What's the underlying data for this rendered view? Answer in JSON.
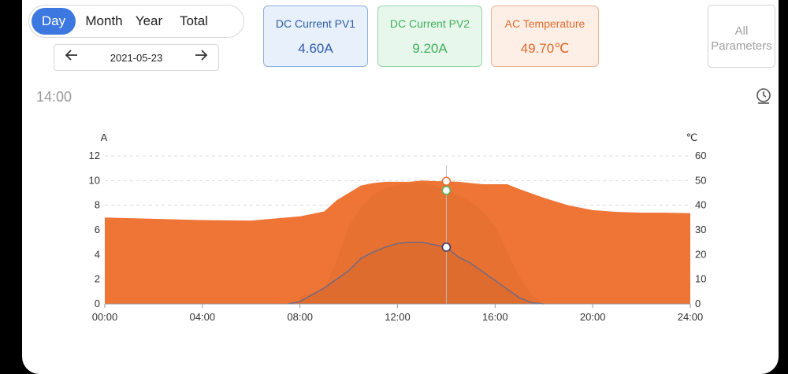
{
  "period_tabs": {
    "day": "Day",
    "month": "Month",
    "year": "Year",
    "total": "Total"
  },
  "date": "2021-05-23",
  "nav": {
    "prev_icon": "arrow-left-icon",
    "next_icon": "arrow-right-icon"
  },
  "cards": [
    {
      "label": "DC Current PV1",
      "value": "4.60A",
      "color": "#2e5da8"
    },
    {
      "label": "DC Current PV2",
      "value": "9.20A",
      "color": "#3fae5a"
    },
    {
      "label": "AC Temperature",
      "value": "49.70℃",
      "color": "#e06a2e"
    }
  ],
  "all_params": {
    "line1": "All",
    "line2": "Parameters"
  },
  "selected_time": "14:00",
  "colors": {
    "accent": "#3d78e0",
    "area": "#ee7536",
    "pv1": "#6a6a8a",
    "pv2": "#55b55f"
  },
  "chart_data": {
    "type": "area",
    "x_unit": "time of day",
    "xlim": [
      "00:00",
      "24:00"
    ],
    "x_ticks": [
      "00:00",
      "04:00",
      "08:00",
      "12:00",
      "16:00",
      "20:00",
      "24:00"
    ],
    "y_left": {
      "label": "A",
      "ticks": [
        0,
        2,
        4,
        6,
        8,
        10,
        12
      ],
      "ylim": [
        0,
        12
      ]
    },
    "y_right": {
      "label": "℃",
      "ticks": [
        0,
        10,
        20,
        30,
        40,
        50,
        60
      ],
      "ylim": [
        0,
        60
      ]
    },
    "cursor_time": "14:00",
    "series": [
      {
        "axis": "right",
        "x": [
          "00:00",
          "02:00",
          "04:00",
          "06:00",
          "08:00",
          "09:00",
          "09:30",
          "10:00",
          "10:30",
          "11:00",
          "11:30",
          "12:00",
          "12:30",
          "13:00",
          "13:30",
          "14:00",
          "14:30",
          "15:00",
          "15:30",
          "16:00",
          "16:30",
          "17:00",
          "18:00",
          "19:00",
          "20:00",
          "21:00",
          "22:00",
          "23:00",
          "24:00"
        ],
        "values": [
          35.0,
          34.5,
          34.0,
          33.8,
          35.5,
          37.5,
          42,
          45,
          48,
          49,
          49.5,
          49.5,
          49.5,
          50,
          49.8,
          49.7,
          49.5,
          49,
          48.5,
          48.5,
          48.5,
          46.5,
          43,
          40,
          38,
          37.3,
          37,
          37,
          36.8
        ]
      },
      {
        "axis": "left",
        "x": [
          "08:00",
          "09:00",
          "09:30",
          "10:00",
          "10:30",
          "11:00",
          "11:30",
          "12:00",
          "12:30",
          "13:00",
          "13:30",
          "14:00",
          "14:30",
          "15:00",
          "15:30",
          "16:00",
          "16:30",
          "17:00",
          "17:30",
          "18:00"
        ],
        "values": [
          0.6,
          1.2,
          3.5,
          6.3,
          7.8,
          8.9,
          9.4,
          9.6,
          9.8,
          9.8,
          9.6,
          9.2,
          8.8,
          8.3,
          7.5,
          6.3,
          4.2,
          2.2,
          0.7,
          0
        ]
      },
      {
        "axis": "left",
        "x": [
          "07:30",
          "08:00",
          "09:00",
          "10:00",
          "10:30",
          "11:00",
          "11:30",
          "12:00",
          "12:30",
          "13:00",
          "13:30",
          "14:00",
          "14:30",
          "15:00",
          "15:30",
          "16:00",
          "16:30",
          "17:00",
          "17:30",
          "18:00"
        ],
        "values": [
          0,
          0.2,
          1.3,
          2.7,
          3.7,
          4.2,
          4.6,
          4.9,
          5.0,
          5.0,
          4.8,
          4.6,
          3.8,
          3.3,
          2.6,
          1.9,
          1.2,
          0.5,
          0.1,
          0
        ]
      }
    ]
  }
}
